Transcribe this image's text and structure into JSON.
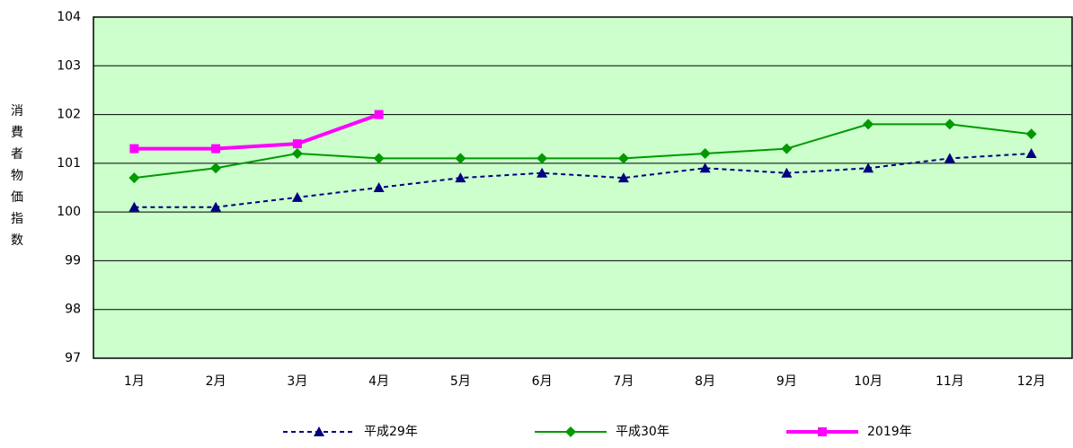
{
  "chart_data": {
    "type": "line",
    "y_label": "消費者物価指数",
    "categories": [
      "1月",
      "2月",
      "3月",
      "4月",
      "5月",
      "6月",
      "7月",
      "8月",
      "9月",
      "10月",
      "11月",
      "12月"
    ],
    "series": [
      {
        "name": "平成29年",
        "color": "#000080",
        "marker": "triangle",
        "dashed": true,
        "width": 2,
        "values": [
          100.1,
          100.1,
          100.3,
          100.5,
          100.7,
          100.8,
          100.7,
          100.9,
          100.8,
          100.9,
          101.1,
          101.2
        ]
      },
      {
        "name": "平成30年",
        "color": "#009900",
        "marker": "diamond",
        "dashed": false,
        "width": 2,
        "values": [
          100.7,
          100.9,
          101.2,
          101.1,
          101.1,
          101.1,
          101.1,
          101.2,
          101.3,
          101.8,
          101.8,
          101.6
        ]
      },
      {
        "name": "2019年",
        "color": "#ff00ff",
        "marker": "square",
        "dashed": false,
        "width": 4,
        "values": [
          101.3,
          101.3,
          101.4,
          102.0,
          null,
          null,
          null,
          null,
          null,
          null,
          null,
          null
        ]
      }
    ],
    "ylim": [
      97,
      104
    ],
    "yticks": [
      97,
      98,
      99,
      100,
      101,
      102,
      103,
      104
    ],
    "grid": true,
    "background": "#ccffcc",
    "legend": "bottom"
  }
}
